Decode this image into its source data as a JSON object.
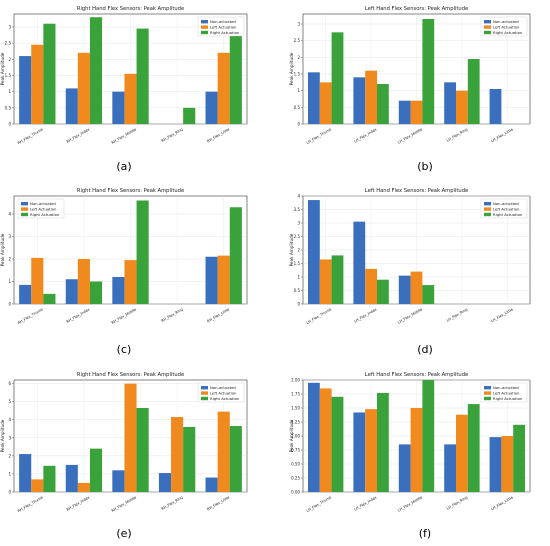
{
  "colors": {
    "non": "#3a6fbe",
    "left": "#f08a1e",
    "right": "#3aa23a"
  },
  "chart_data": [
    {
      "type": "bar",
      "label": "(a)",
      "title": "Right Hand Flex Sensors: Peak Amplitude",
      "ylabel": "Peak Amplitude",
      "categories": [
        "RH_Flex_Thumb",
        "RH_Flex_Index",
        "RH_Flex_Middle",
        "RH_Flex_Ring",
        "RH_Flex_Little"
      ],
      "series": [
        {
          "name": "Non-actuated",
          "values": [
            2.1,
            1.1,
            1.0,
            0,
            1.0
          ]
        },
        {
          "name": "Left Actuation",
          "values": [
            2.45,
            2.2,
            1.55,
            0,
            2.2
          ]
        },
        {
          "name": "Right Actuation",
          "values": [
            3.1,
            3.3,
            2.95,
            0.5,
            2.85
          ]
        }
      ],
      "ylim": [
        0,
        3.4
      ],
      "yticks": [
        0,
        0.5,
        1.0,
        1.5,
        2.0,
        2.5,
        3.0
      ],
      "legend": "top-right",
      "grid": true
    },
    {
      "type": "bar",
      "label": "(b)",
      "title": "Left Hand Flex Sensors: Peak Amplitude",
      "ylabel": "Peak Amplitude",
      "categories": [
        "LH_Flex_Thumb",
        "LH_Flex_Index",
        "LH_Flex_Middle",
        "LH_Flex_Ring",
        "LH_Flex_Little"
      ],
      "series": [
        {
          "name": "Non-actuated",
          "values": [
            1.55,
            1.4,
            0.7,
            1.25,
            1.05
          ]
        },
        {
          "name": "Left Actuation",
          "values": [
            1.25,
            1.6,
            0.7,
            1.0,
            0
          ]
        },
        {
          "name": "Right Actuation",
          "values": [
            2.75,
            1.2,
            3.15,
            1.95,
            0
          ]
        }
      ],
      "ylim": [
        0,
        3.3
      ],
      "yticks": [
        0,
        0.5,
        1.0,
        1.5,
        2.0,
        2.5,
        3.0
      ],
      "legend": "top-right",
      "grid": true
    },
    {
      "type": "bar",
      "label": "(c)",
      "title": "Right Hand Flex Sensors: Peak Amplitude",
      "ylabel": "Peak Amplitude",
      "categories": [
        "RH_Flex_Thumb",
        "RH_Flex_Index",
        "RH_Flex_Middle",
        "RH_Flex_Ring",
        "RH_Flex_Little"
      ],
      "series": [
        {
          "name": "Non-actuated",
          "values": [
            0.85,
            1.1,
            1.2,
            0,
            2.1
          ]
        },
        {
          "name": "Left Actuation",
          "values": [
            2.05,
            2.0,
            1.95,
            0,
            2.15
          ]
        },
        {
          "name": "Right Actuation",
          "values": [
            0.45,
            1.0,
            4.6,
            0,
            4.3
          ]
        }
      ],
      "ylim": [
        0,
        4.8
      ],
      "yticks": [
        0,
        1,
        2,
        3,
        4
      ],
      "legend": "top-left",
      "grid": true
    },
    {
      "type": "bar",
      "label": "(d)",
      "title": "Left Hand Flex Sensors: Peak Amplitude",
      "ylabel": "Peak Amplitude",
      "categories": [
        "LH_Flex_Thumb",
        "LH_Flex_Index",
        "LH_Flex_Middle",
        "LH_Flex_Ring",
        "LH_Flex_Little"
      ],
      "series": [
        {
          "name": "Non-actuated",
          "values": [
            3.85,
            3.05,
            1.05,
            0,
            0
          ]
        },
        {
          "name": "Left Actuation",
          "values": [
            1.65,
            1.3,
            1.2,
            0,
            0
          ]
        },
        {
          "name": "Right Actuation",
          "values": [
            1.8,
            0.9,
            0.7,
            0,
            0
          ]
        }
      ],
      "ylim": [
        0,
        4.0
      ],
      "yticks": [
        0,
        0.5,
        1.0,
        1.5,
        2.0,
        2.5,
        3.0,
        3.5,
        4.0
      ],
      "legend": "top-right",
      "grid": true
    },
    {
      "type": "bar",
      "label": "(e)",
      "title": "Right Hand Flex Sensors: Peak Amplitude",
      "ylabel": "Peak Amplitude",
      "categories": [
        "RH_Flex_Thumb",
        "RH_Flex_Index",
        "RH_Flex_Middle",
        "RH_Flex_Ring",
        "RH_Flex_Little"
      ],
      "series": [
        {
          "name": "Non-actuated",
          "values": [
            2.1,
            1.5,
            1.2,
            1.05,
            0.8
          ]
        },
        {
          "name": "Left Actuation",
          "values": [
            0.7,
            0.5,
            6.0,
            4.15,
            4.45
          ]
        },
        {
          "name": "Right Actuation",
          "values": [
            1.45,
            2.4,
            4.65,
            3.6,
            3.65
          ]
        }
      ],
      "ylim": [
        0,
        6.2
      ],
      "yticks": [
        0,
        1,
        2,
        3,
        4,
        5,
        6
      ],
      "legend": "top-right",
      "grid": true
    },
    {
      "type": "bar",
      "label": "(f)",
      "title": "Left Hand Flex Sensors: Peak Amplitude",
      "ylabel": "Peak Amplitude",
      "categories": [
        "LH_Flex_Thumb",
        "LH_Flex_Index",
        "LH_Flex_Middle",
        "LH_Flex_Ring",
        "LH_Flex_Little"
      ],
      "series": [
        {
          "name": "Non-actuated",
          "values": [
            1.95,
            1.42,
            0.85,
            0.85,
            0.98
          ]
        },
        {
          "name": "Left Actuation",
          "values": [
            1.85,
            1.48,
            1.5,
            1.38,
            1.0
          ]
        },
        {
          "name": "Right Actuation",
          "values": [
            1.7,
            1.77,
            2.0,
            1.57,
            1.2
          ]
        }
      ],
      "ylim": [
        0,
        2.0
      ],
      "yticks": [
        0,
        0.25,
        0.5,
        0.75,
        1.0,
        1.25,
        1.5,
        1.75,
        2.0
      ],
      "yticklabels": [
        "0.00",
        "0.25",
        "0.50",
        "0.75",
        "1.00",
        "1.25",
        "1.50",
        "1.75",
        "2.00"
      ],
      "legend": "top-right",
      "grid": true
    }
  ]
}
